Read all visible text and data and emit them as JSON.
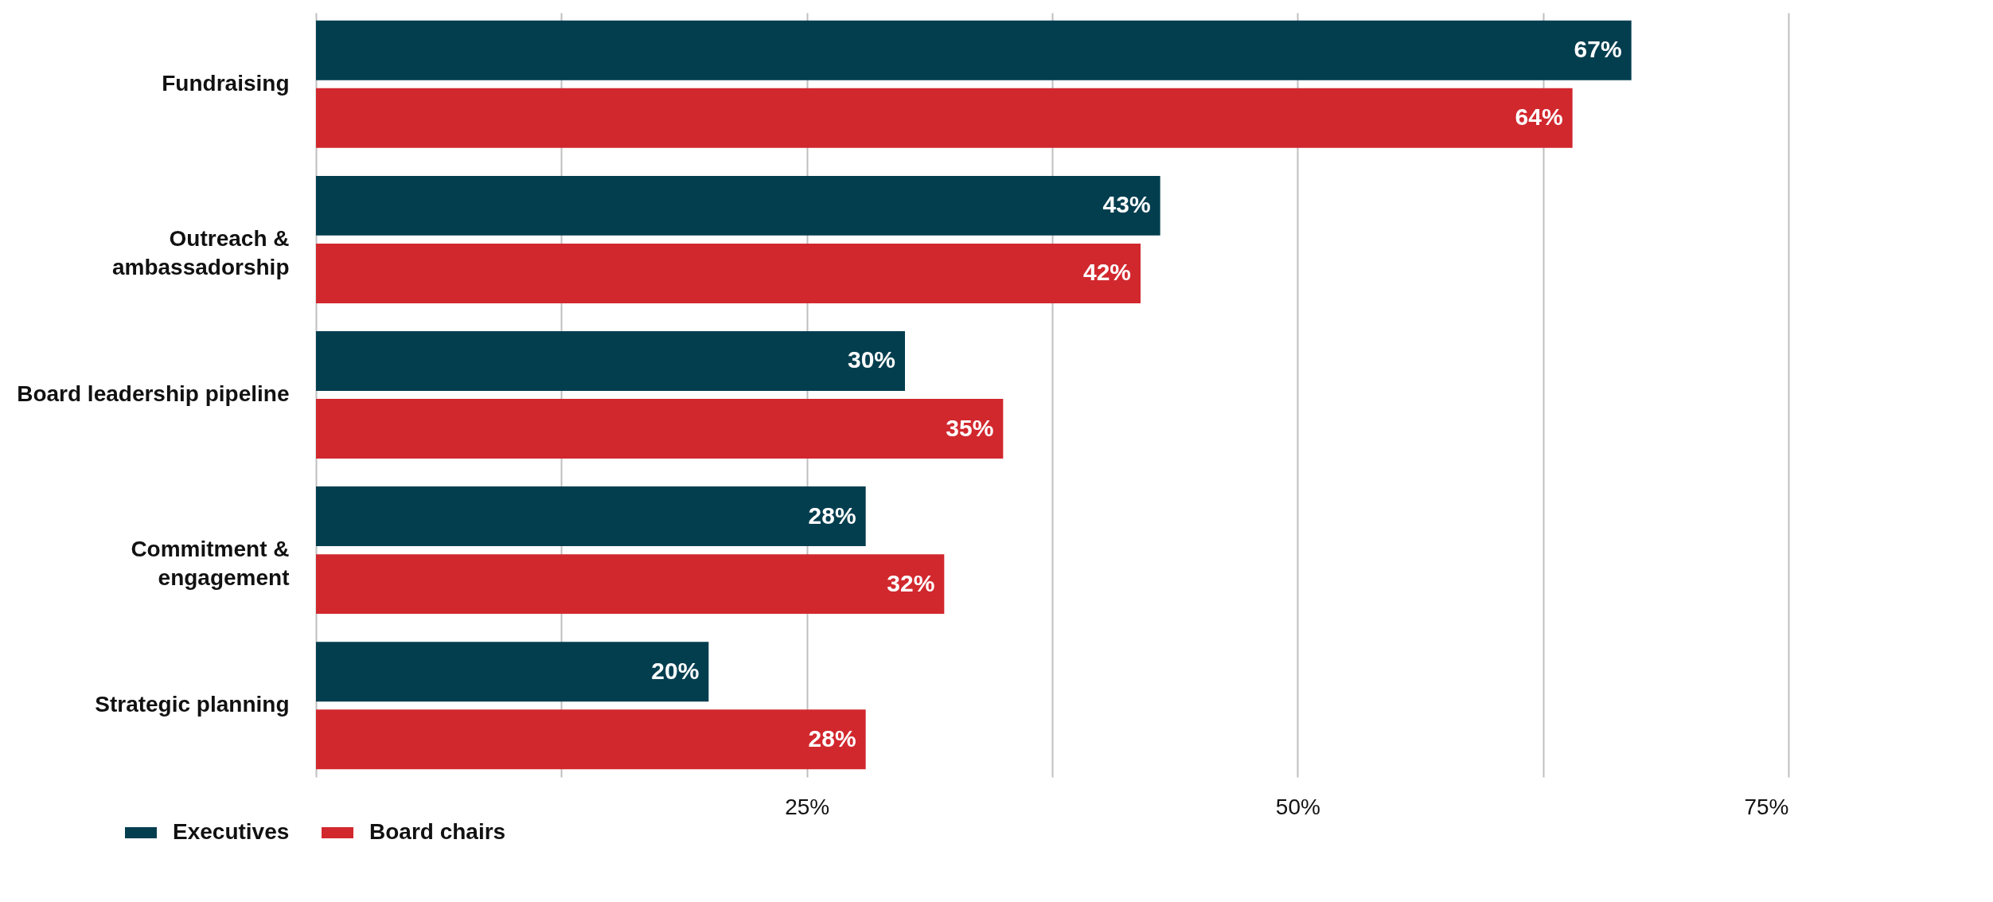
{
  "chart_data": {
    "type": "bar",
    "orientation": "horizontal",
    "categories": [
      "Fundraising",
      "Outreach & ambassadorship",
      "Board leadership pipeline",
      "Commitment & engagement",
      "Strategic planning"
    ],
    "series": [
      {
        "name": "Executives",
        "color": "#033e4f",
        "values": [
          67,
          43,
          30,
          28,
          20
        ],
        "value_labels": [
          "67%",
          "43%",
          "30%",
          "28%",
          "20%"
        ]
      },
      {
        "name": "Board chairs",
        "color": "#d1282e",
        "values": [
          64,
          42,
          35,
          32,
          28
        ],
        "value_labels": [
          "64%",
          "42%",
          "35%",
          "32%",
          "28%"
        ]
      }
    ],
    "xlim": [
      0,
      75
    ],
    "xticks": [
      {
        "value": 0,
        "label": null
      },
      {
        "value": 12.5,
        "label": null
      },
      {
        "value": 25,
        "label": "25%"
      },
      {
        "value": 37.5,
        "label": null
      },
      {
        "value": 50,
        "label": "50%"
      },
      {
        "value": 62.5,
        "label": null
      },
      {
        "value": 75,
        "label": "75%"
      }
    ],
    "grid": "x",
    "legend": "bottom left"
  }
}
